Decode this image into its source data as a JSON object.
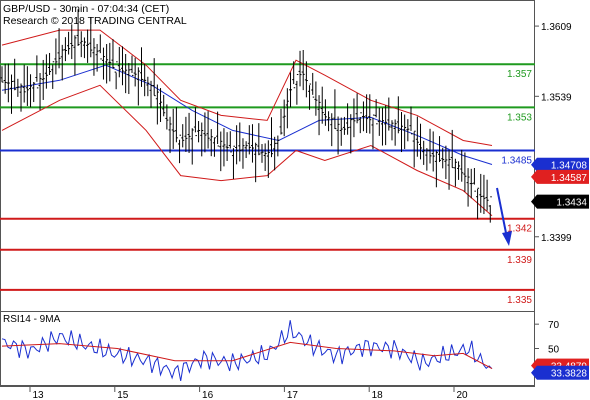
{
  "header": {
    "line1": "GBP/USD - 30min - 07:04:34 (CET)",
    "line2": "Research © 2018 TRADING CENTRAL"
  },
  "price_axis": {
    "ticks": [
      "1.3609",
      "1.3539",
      "1.3469",
      "1.3399"
    ],
    "tick_values": [
      1.3609,
      1.3539,
      1.3469,
      1.3399
    ]
  },
  "levels": [
    {
      "label": "1.357",
      "value": 1.3571,
      "color": "#1f9a1f"
    },
    {
      "label": "1.353",
      "value": 1.3528,
      "color": "#1f9a1f"
    },
    {
      "label": "1.3485",
      "value": 1.3485,
      "color": "#1a2fd0"
    },
    {
      "label": "1.342",
      "value": 1.3417,
      "color": "#d01a1a"
    },
    {
      "label": "1.339",
      "value": 1.3386,
      "color": "#d01a1a"
    },
    {
      "label": "1.335",
      "value": 1.3346,
      "color": "#d01a1a"
    }
  ],
  "badges": [
    {
      "label": "1.34708",
      "value": 1.34708,
      "bg": "#1a2fd0",
      "fg": "#ffffff"
    },
    {
      "label": "1.34587",
      "value": 1.34587,
      "bg": "#e02020",
      "fg": "#ffffff"
    },
    {
      "label": "1.3434",
      "value": 1.3434,
      "bg": "#000000",
      "fg": "#ffffff"
    }
  ],
  "rsi": {
    "title": "RSI14 - 9MA",
    "ticks": [
      "70",
      "50"
    ],
    "tick_values": [
      70,
      50
    ],
    "badges": [
      {
        "label": "33.4879",
        "value": 33.4879,
        "bg": "#e02020",
        "fg": "#ffffff"
      },
      {
        "label": "33.3828",
        "value": 33.3828,
        "bg": "#1a2fd0",
        "fg": "#ffffff"
      }
    ]
  },
  "x_axis": {
    "labels": [
      "13",
      "15",
      "16",
      "17",
      "18",
      "20"
    ]
  },
  "colors": {
    "candles": "#000000",
    "bollinger": "#d01a1a",
    "moving_average": "#1a2fd0",
    "arrow": "#1a2fd0",
    "rsi_line": "#1a2fd0",
    "rsi_ma": "#d01a1a"
  },
  "chart_data": {
    "type": "line",
    "title": "GBP/USD - 30min - 07:04:34 (CET)",
    "ylim": [
      1.3325,
      1.3635
    ],
    "x_labels": [
      "13",
      "15",
      "16",
      "17",
      "18",
      "20"
    ],
    "price_path": [
      [
        0,
        1.3555
      ],
      [
        8,
        1.3545
      ],
      [
        14,
        1.3555
      ],
      [
        20,
        1.358
      ],
      [
        26,
        1.3595
      ],
      [
        30,
        1.359
      ],
      [
        36,
        1.3575
      ],
      [
        42,
        1.3565
      ],
      [
        48,
        1.356
      ],
      [
        54,
        1.354
      ],
      [
        58,
        1.351
      ],
      [
        62,
        1.3495
      ],
      [
        68,
        1.3505
      ],
      [
        74,
        1.3495
      ],
      [
        80,
        1.3485
      ],
      [
        86,
        1.349
      ],
      [
        92,
        1.348
      ],
      [
        96,
        1.3495
      ],
      [
        100,
        1.3545
      ],
      [
        104,
        1.3565
      ],
      [
        108,
        1.354
      ],
      [
        112,
        1.352
      ],
      [
        118,
        1.3505
      ],
      [
        124,
        1.352
      ],
      [
        130,
        1.3515
      ],
      [
        136,
        1.351
      ],
      [
        142,
        1.3505
      ],
      [
        146,
        1.3485
      ],
      [
        150,
        1.348
      ],
      [
        154,
        1.3475
      ],
      [
        158,
        1.347
      ],
      [
        162,
        1.3455
      ],
      [
        166,
        1.344
      ],
      [
        170,
        1.3434
      ]
    ],
    "moving_average_path": [
      [
        0,
        1.3545
      ],
      [
        20,
        1.3555
      ],
      [
        36,
        1.357
      ],
      [
        52,
        1.355
      ],
      [
        66,
        1.3525
      ],
      [
        80,
        1.3505
      ],
      [
        96,
        1.3495
      ],
      [
        110,
        1.3515
      ],
      [
        128,
        1.3518
      ],
      [
        144,
        1.35
      ],
      [
        160,
        1.348
      ],
      [
        170,
        1.3471
      ]
    ],
    "bollinger_upper_path": [
      [
        0,
        1.359
      ],
      [
        20,
        1.3605
      ],
      [
        34,
        1.3605
      ],
      [
        50,
        1.357
      ],
      [
        62,
        1.3535
      ],
      [
        76,
        1.352
      ],
      [
        92,
        1.3515
      ],
      [
        102,
        1.3575
      ],
      [
        112,
        1.356
      ],
      [
        128,
        1.3535
      ],
      [
        144,
        1.352
      ],
      [
        160,
        1.3495
      ],
      [
        170,
        1.349
      ]
    ],
    "bollinger_lower_path": [
      [
        0,
        1.3505
      ],
      [
        20,
        1.3535
      ],
      [
        34,
        1.355
      ],
      [
        50,
        1.3505
      ],
      [
        62,
        1.346
      ],
      [
        76,
        1.3455
      ],
      [
        92,
        1.346
      ],
      [
        102,
        1.3485
      ],
      [
        112,
        1.3475
      ],
      [
        128,
        1.349
      ],
      [
        144,
        1.3465
      ],
      [
        160,
        1.3445
      ],
      [
        170,
        1.342
      ]
    ],
    "rsi_path": [
      [
        0,
        55
      ],
      [
        10,
        48
      ],
      [
        20,
        60
      ],
      [
        30,
        52
      ],
      [
        40,
        45
      ],
      [
        50,
        40
      ],
      [
        60,
        30
      ],
      [
        70,
        42
      ],
      [
        80,
        38
      ],
      [
        92,
        45
      ],
      [
        100,
        65
      ],
      [
        108,
        52
      ],
      [
        116,
        44
      ],
      [
        126,
        52
      ],
      [
        136,
        50
      ],
      [
        146,
        38
      ],
      [
        156,
        46
      ],
      [
        162,
        50
      ],
      [
        166,
        40
      ],
      [
        170,
        33.38
      ]
    ],
    "rsi_ma_path": [
      [
        0,
        52
      ],
      [
        20,
        54
      ],
      [
        40,
        50
      ],
      [
        60,
        40
      ],
      [
        80,
        40
      ],
      [
        100,
        55
      ],
      [
        116,
        50
      ],
      [
        136,
        48
      ],
      [
        150,
        44
      ],
      [
        160,
        46
      ],
      [
        170,
        33.49
      ]
    ],
    "rsi_ylim": [
      20,
      80
    ]
  }
}
